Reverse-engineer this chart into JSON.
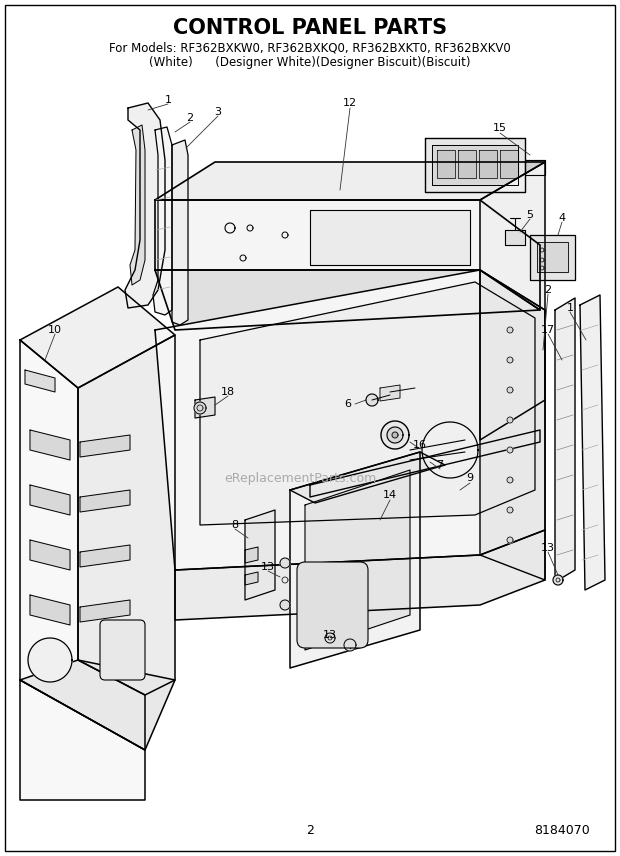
{
  "title": "CONTROL PANEL PARTS",
  "subtitle_line1": "For Models: RF362BXKW0, RF362BXKQ0, RF362BXKT0, RF362BXKV0",
  "subtitle_line2": "(White)      (Designer White)(Designer Biscuit)(Biscuit)",
  "page_number": "2",
  "part_number": "8184070",
  "watermark": "eReplacementParts.com",
  "bg": "#ffffff",
  "lc": "#000000",
  "title_fs": 15,
  "sub_fs": 8.5,
  "label_fs": 8.0
}
